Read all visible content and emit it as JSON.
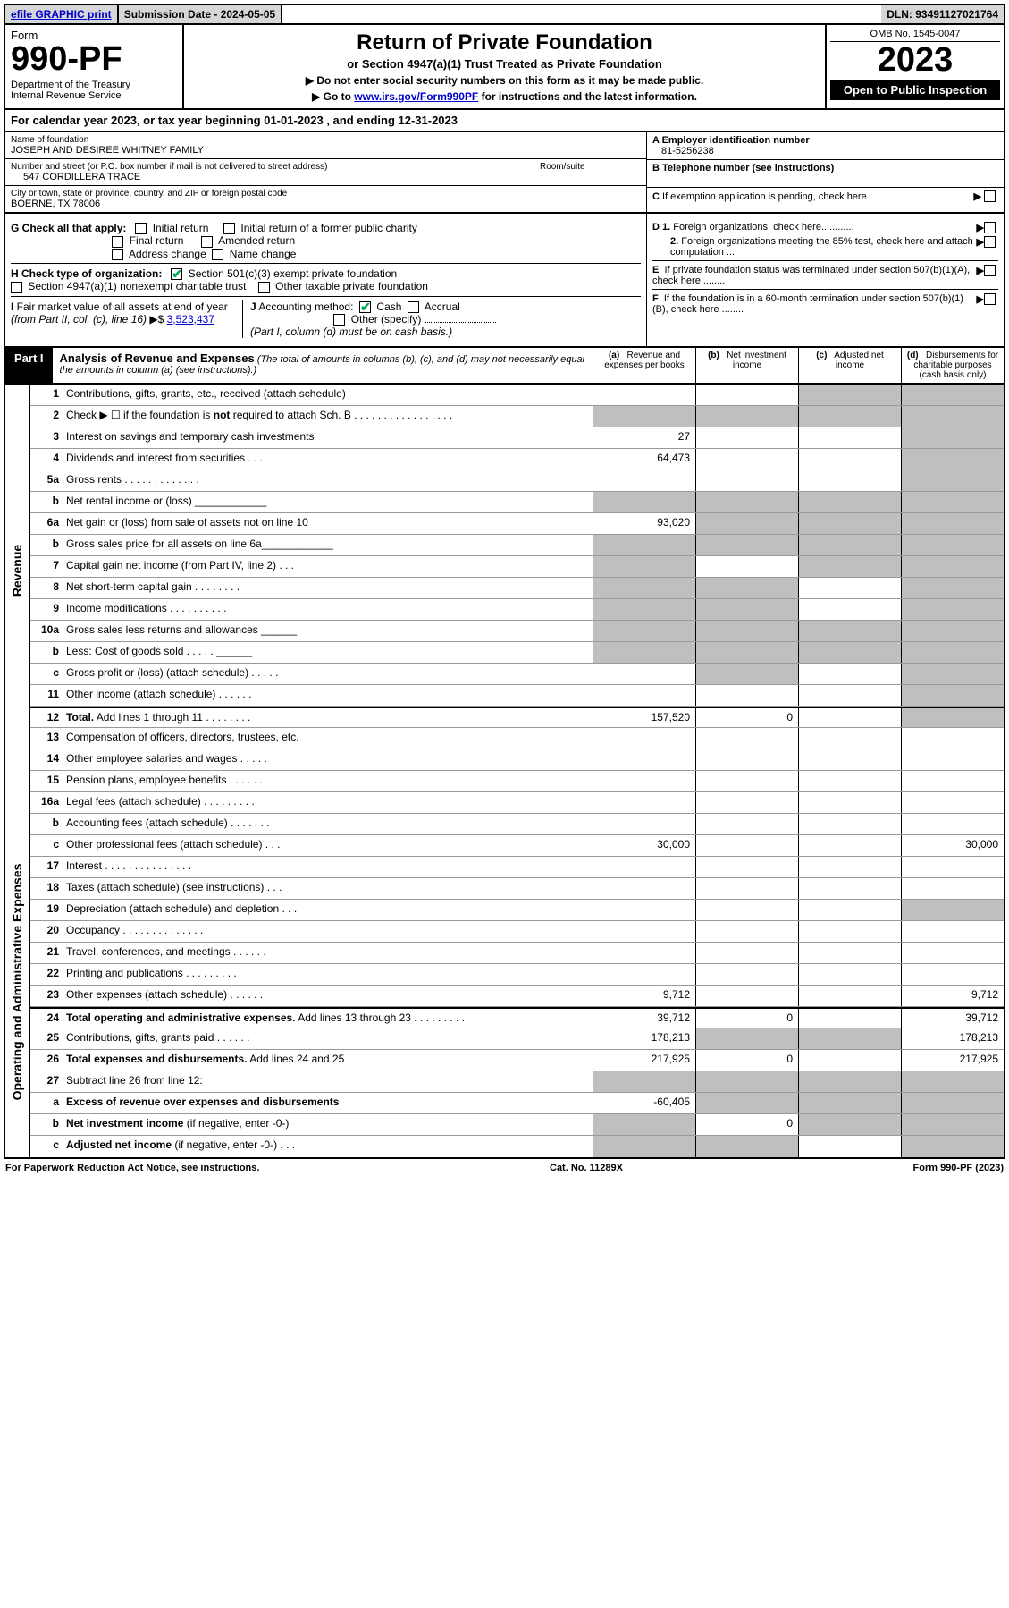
{
  "topbar": {
    "efile": "efile GRAPHIC print",
    "submission_label": "Submission Date - 2024-05-05",
    "dln_label": "DLN: 93491127021764"
  },
  "header": {
    "form": "Form",
    "number": "990-PF",
    "dept": "Department of the Treasury\nInternal Revenue Service",
    "title": "Return of Private Foundation",
    "subtitle": "or Section 4947(a)(1) Trust Treated as Private Foundation",
    "instr1": "▶ Do not enter social security numbers on this form as it may be made public.",
    "instr2_pre": "▶ Go to ",
    "instr2_link": "www.irs.gov/Form990PF",
    "instr2_post": " for instructions and the latest information.",
    "omb": "OMB No. 1545-0047",
    "year": "2023",
    "open": "Open to Public Inspection"
  },
  "calyear": "For calendar year 2023, or tax year beginning 01-01-2023                           , and ending 12-31-2023",
  "id": {
    "name_label": "Name of foundation",
    "name": "JOSEPH AND DESIREE WHITNEY FAMILY",
    "addr_label": "Number and street (or P.O. box number if mail is not delivered to street address)",
    "addr": "547 CORDILLERA TRACE",
    "room_label": "Room/suite",
    "city_label": "City or town, state or province, country, and ZIP or foreign postal code",
    "city": "BOERNE, TX  78006",
    "a_label": "A Employer identification number",
    "a_val": "81-5256238",
    "b_label": "B Telephone number (see instructions)",
    "c_label": "C If exemption application is pending, check here"
  },
  "checks": {
    "g_label": "G Check all that apply:",
    "g_items": [
      "Initial return",
      "Initial return of a former public charity",
      "Final return",
      "Amended return",
      "Address change",
      "Name change"
    ],
    "h_label": "H Check type of organization:",
    "h1": "Section 501(c)(3) exempt private foundation",
    "h2": "Section 4947(a)(1) nonexempt charitable trust",
    "h3": "Other taxable private foundation",
    "i_label": "I Fair market value of all assets at end of year (from Part II, col. (c), line 16) ▶$",
    "i_val": "3,523,437",
    "j_label": "J Accounting method:",
    "j_cash": "Cash",
    "j_accrual": "Accrual",
    "j_other": "Other (specify)",
    "j_note": "(Part I, column (d) must be on cash basis.)",
    "d1": "D 1. Foreign organizations, check here............",
    "d2": "2. Foreign organizations meeting the 85% test, check here and attach computation ...",
    "e": "E  If private foundation status was terminated under section 507(b)(1)(A), check here ........",
    "f": "F  If the foundation is in a 60-month termination under section 507(b)(1)(B), check here ........"
  },
  "part1": {
    "tab": "Part I",
    "title": "Analysis of Revenue and Expenses",
    "note": "(The total of amounts in columns (b), (c), and (d) may not necessarily equal the amounts in column (a) (see instructions).)",
    "col_a": "(a)   Revenue and expenses per books",
    "col_b": "(b)   Net investment income",
    "col_c": "(c)   Adjusted net income",
    "col_d": "(d)   Disbursements for charitable purposes (cash basis only)"
  },
  "sections": {
    "revenue": "Revenue",
    "opex": "Operating and Administrative Expenses"
  },
  "rows": [
    {
      "n": "1",
      "d": "Contributions, gifts, grants, etc., received (attach schedule)",
      "a": "",
      "b": "",
      "c": "g",
      "dcol": "g"
    },
    {
      "n": "2",
      "d": "Check ▶ ☐ if the foundation is <b>not</b> required to attach Sch. B  .  .  .  .  .  .  .  .  .  .  .  .  .  .  .  .  .",
      "a": "g",
      "b": "g",
      "c": "g",
      "dcol": "g"
    },
    {
      "n": "3",
      "d": "Interest on savings and temporary cash investments",
      "a": "27",
      "b": "",
      "c": "",
      "dcol": "g"
    },
    {
      "n": "4",
      "d": "Dividends and interest from securities  .  .  .",
      "a": "64,473",
      "b": "",
      "c": "",
      "dcol": "g"
    },
    {
      "n": "5a",
      "d": "Gross rents  .  .  .  .  .  .  .  .  .  .  .  .  .",
      "a": "",
      "b": "",
      "c": "",
      "dcol": "g"
    },
    {
      "n": "b",
      "d": "Net rental income or (loss) ____________",
      "a": "g",
      "b": "g",
      "c": "g",
      "dcol": "g"
    },
    {
      "n": "6a",
      "d": "Net gain or (loss) from sale of assets not on line 10",
      "a": "93,020",
      "b": "g",
      "c": "g",
      "dcol": "g"
    },
    {
      "n": "b",
      "d": "Gross sales price for all assets on line 6a____________",
      "a": "g",
      "b": "g",
      "c": "g",
      "dcol": "g"
    },
    {
      "n": "7",
      "d": "Capital gain net income (from Part IV, line 2)  .  .  .",
      "a": "g",
      "b": "",
      "c": "g",
      "dcol": "g"
    },
    {
      "n": "8",
      "d": "Net short-term capital gain  .  .  .  .  .  .  .  .",
      "a": "g",
      "b": "g",
      "c": "",
      "dcol": "g"
    },
    {
      "n": "9",
      "d": "Income modifications  .  .  .  .  .  .  .  .  .  .",
      "a": "g",
      "b": "g",
      "c": "",
      "dcol": "g"
    },
    {
      "n": "10a",
      "d": "Gross sales less returns and allowances  ______",
      "a": "g",
      "b": "g",
      "c": "g",
      "dcol": "g"
    },
    {
      "n": "b",
      "d": "Less: Cost of goods sold  .  .  .  .  .  ______",
      "a": "g",
      "b": "g",
      "c": "g",
      "dcol": "g"
    },
    {
      "n": "c",
      "d": "Gross profit or (loss) (attach schedule)  .  .  .  .  .",
      "a": "",
      "b": "g",
      "c": "",
      "dcol": "g"
    },
    {
      "n": "11",
      "d": "Other income (attach schedule)  .  .  .  .  .  .",
      "a": "",
      "b": "",
      "c": "",
      "dcol": "g"
    },
    {
      "n": "12",
      "d": "<b>Total.</b> Add lines 1 through 11  .  .  .  .  .  .  .  .",
      "a": "157,520",
      "b": "0",
      "c": "",
      "dcol": "g"
    },
    {
      "n": "13",
      "d": "Compensation of officers, directors, trustees, etc.",
      "a": "",
      "b": "",
      "c": "",
      "dcol": ""
    },
    {
      "n": "14",
      "d": "Other employee salaries and wages  .  .  .  .  .",
      "a": "",
      "b": "",
      "c": "",
      "dcol": ""
    },
    {
      "n": "15",
      "d": "Pension plans, employee benefits  .  .  .  .  .  .",
      "a": "",
      "b": "",
      "c": "",
      "dcol": ""
    },
    {
      "n": "16a",
      "d": "Legal fees (attach schedule) .  .  .  .  .  .  .  .  .",
      "a": "",
      "b": "",
      "c": "",
      "dcol": ""
    },
    {
      "n": "b",
      "d": "Accounting fees (attach schedule) .  .  .  .  .  .  .",
      "a": "",
      "b": "",
      "c": "",
      "dcol": ""
    },
    {
      "n": "c",
      "d": "Other professional fees (attach schedule)  .  .  .",
      "a": "30,000",
      "b": "",
      "c": "",
      "dcol": "30,000"
    },
    {
      "n": "17",
      "d": "Interest .  .  .  .  .  .  .  .  .  .  .  .  .  .  .",
      "a": "",
      "b": "",
      "c": "",
      "dcol": ""
    },
    {
      "n": "18",
      "d": "Taxes (attach schedule) (see instructions)  .  .  .",
      "a": "",
      "b": "",
      "c": "",
      "dcol": ""
    },
    {
      "n": "19",
      "d": "Depreciation (attach schedule) and depletion  .  .  .",
      "a": "",
      "b": "",
      "c": "",
      "dcol": "g"
    },
    {
      "n": "20",
      "d": "Occupancy .  .  .  .  .  .  .  .  .  .  .  .  .  .",
      "a": "",
      "b": "",
      "c": "",
      "dcol": ""
    },
    {
      "n": "21",
      "d": "Travel, conferences, and meetings .  .  .  .  .  .",
      "a": "",
      "b": "",
      "c": "",
      "dcol": ""
    },
    {
      "n": "22",
      "d": "Printing and publications .  .  .  .  .  .  .  .  .",
      "a": "",
      "b": "",
      "c": "",
      "dcol": ""
    },
    {
      "n": "23",
      "d": "Other expenses (attach schedule) .  .  .  .  .  .",
      "a": "9,712",
      "b": "",
      "c": "",
      "dcol": "9,712"
    },
    {
      "n": "24",
      "d": "<b>Total operating and administrative expenses.</b> Add lines 13 through 23  .  .  .  .  .  .  .  .  .",
      "a": "39,712",
      "b": "0",
      "c": "",
      "dcol": "39,712"
    },
    {
      "n": "25",
      "d": "Contributions, gifts, grants paid  .  .  .  .  .  .",
      "a": "178,213",
      "b": "g",
      "c": "g",
      "dcol": "178,213"
    },
    {
      "n": "26",
      "d": "<b>Total expenses and disbursements.</b> Add lines 24 and 25",
      "a": "217,925",
      "b": "0",
      "c": "",
      "dcol": "217,925"
    },
    {
      "n": "27",
      "d": "Subtract line 26 from line 12:",
      "a": "g",
      "b": "g",
      "c": "g",
      "dcol": "g"
    },
    {
      "n": "a",
      "d": "<b>Excess of revenue over expenses and disbursements</b>",
      "a": "-60,405",
      "b": "g",
      "c": "g",
      "dcol": "g"
    },
    {
      "n": "b",
      "d": "<b>Net investment income</b> (if negative, enter -0-)",
      "a": "g",
      "b": "0",
      "c": "g",
      "dcol": "g"
    },
    {
      "n": "c",
      "d": "<b>Adjusted net income</b> (if negative, enter -0-)  .  .  .",
      "a": "g",
      "b": "g",
      "c": "",
      "dcol": "g"
    }
  ],
  "footer": {
    "left": "For Paperwork Reduction Act Notice, see instructions.",
    "mid": "Cat. No. 11289X",
    "right": "Form 990-PF (2023)"
  }
}
